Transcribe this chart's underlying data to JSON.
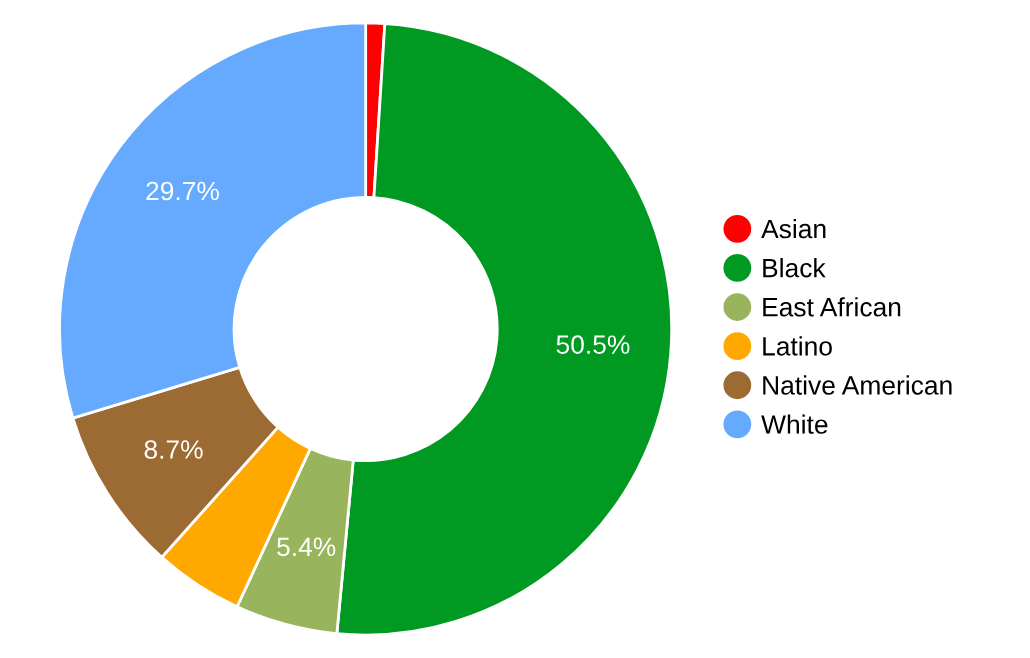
{
  "chart_data": {
    "type": "donut",
    "categories": [
      "Asian",
      "Black",
      "East African",
      "Latino",
      "Native American",
      "White"
    ],
    "values": [
      1.0,
      50.5,
      5.4,
      4.7,
      8.7,
      29.7
    ],
    "colors": [
      "#ff0000",
      "#009a23",
      "#98b55d",
      "#ffa800",
      "#9c6a33",
      "#66aaff"
    ],
    "value_labels": [
      null,
      "50.5%",
      "5.4%",
      null,
      "8.7%",
      "29.7%"
    ],
    "legend": "right"
  }
}
